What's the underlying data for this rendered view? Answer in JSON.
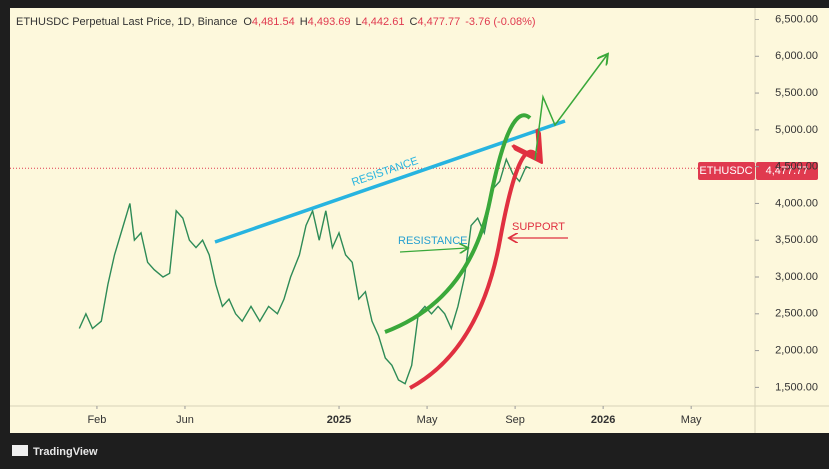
{
  "chart_data": {
    "type": "line",
    "title": "ETHUSDC Perpetual Last Price, 1D, Binance",
    "ohlc": [
      {
        "label": "O",
        "value": "4,481.54"
      },
      {
        "label": "H",
        "value": "4,493.69"
      },
      {
        "label": "L",
        "value": "4,442.61"
      },
      {
        "label": "C",
        "value": "4,477.77"
      }
    ],
    "change": "-3.76 (-0.08%)",
    "symbol": "ETHUSDC",
    "last_price": 4477.77,
    "last_price_label": "4,477.77",
    "annotations": [
      "RESISTANCE",
      "RESISTANCE",
      "SUPPORT"
    ],
    "brand": "TradingView",
    "x": [
      0.2,
      0.5,
      0.8,
      1.2,
      1.5,
      1.8,
      2.2,
      2.5,
      2.7,
      3.0,
      3.3,
      3.6,
      4.0,
      4.3,
      4.6,
      4.9,
      5.2,
      5.5,
      5.8,
      6.1,
      6.4,
      6.7,
      7.0,
      7.3,
      7.6,
      8.0,
      8.4,
      8.8,
      9.2,
      9.5,
      9.8,
      10.2,
      10.5,
      10.8,
      11.1,
      11.4,
      11.7,
      12.0,
      12.3,
      12.6,
      12.9,
      13.2,
      13.5,
      13.8,
      14.1,
      14.4,
      14.7,
      15.0,
      15.3,
      15.6,
      15.9,
      16.2,
      16.5,
      16.8,
      17.1,
      17.4,
      17.7,
      18.0,
      18.3,
      18.6,
      19.0,
      19.3,
      19.6,
      19.9,
      20.2,
      20.5,
      20.7
    ],
    "series": [
      {
        "name": "ETHUSDC",
        "color": "#2e8b57",
        "values": [
          2300,
          2500,
          2300,
          2400,
          2900,
          3300,
          3700,
          4000,
          3500,
          3600,
          3200,
          3100,
          3000,
          3050,
          3900,
          3800,
          3500,
          3400,
          3500,
          3300,
          2900,
          2600,
          2700,
          2500,
          2400,
          2600,
          2400,
          2600,
          2500,
          2700,
          3000,
          3300,
          3700,
          3900,
          3500,
          3900,
          3400,
          3600,
          3300,
          3200,
          2700,
          2800,
          2400,
          2200,
          1900,
          1800,
          1600,
          1550,
          1800,
          2500,
          2600,
          2500,
          2600,
          2500,
          2300,
          2600,
          3000,
          3700,
          3800,
          3600,
          4200,
          4300,
          4600,
          4400,
          4300,
          4500,
          4477.77
        ]
      }
    ],
    "xlim": [
      -2.95,
      30.9
    ],
    "xticks": [
      {
        "value": 1,
        "label": "Feb"
      },
      {
        "value": 5,
        "label": "Jun"
      },
      {
        "value": 12,
        "label": "2025"
      },
      {
        "value": 16,
        "label": "May"
      },
      {
        "value": 20,
        "label": "Sep"
      },
      {
        "value": 24,
        "label": "2026"
      },
      {
        "value": 28,
        "label": "May"
      }
    ],
    "ylim": [
      1247,
      6656
    ],
    "yticks": [
      {
        "value": 1500,
        "label": "1,500.00"
      },
      {
        "value": 2000,
        "label": "2,000.00"
      },
      {
        "value": 2500,
        "label": "2,500.00"
      },
      {
        "value": 3000,
        "label": "3,000.00"
      },
      {
        "value": 3500,
        "label": "3,500.00"
      },
      {
        "value": 4000,
        "label": "4,000.00"
      },
      {
        "value": 4500,
        "label": "4,500.00"
      },
      {
        "value": 5000,
        "label": "5,000.00"
      },
      {
        "value": 5500,
        "label": "5,500.00"
      },
      {
        "value": 6000,
        "label": "6,000.00"
      },
      {
        "value": 6500,
        "label": "6,500.00"
      }
    ],
    "grid": false
  }
}
